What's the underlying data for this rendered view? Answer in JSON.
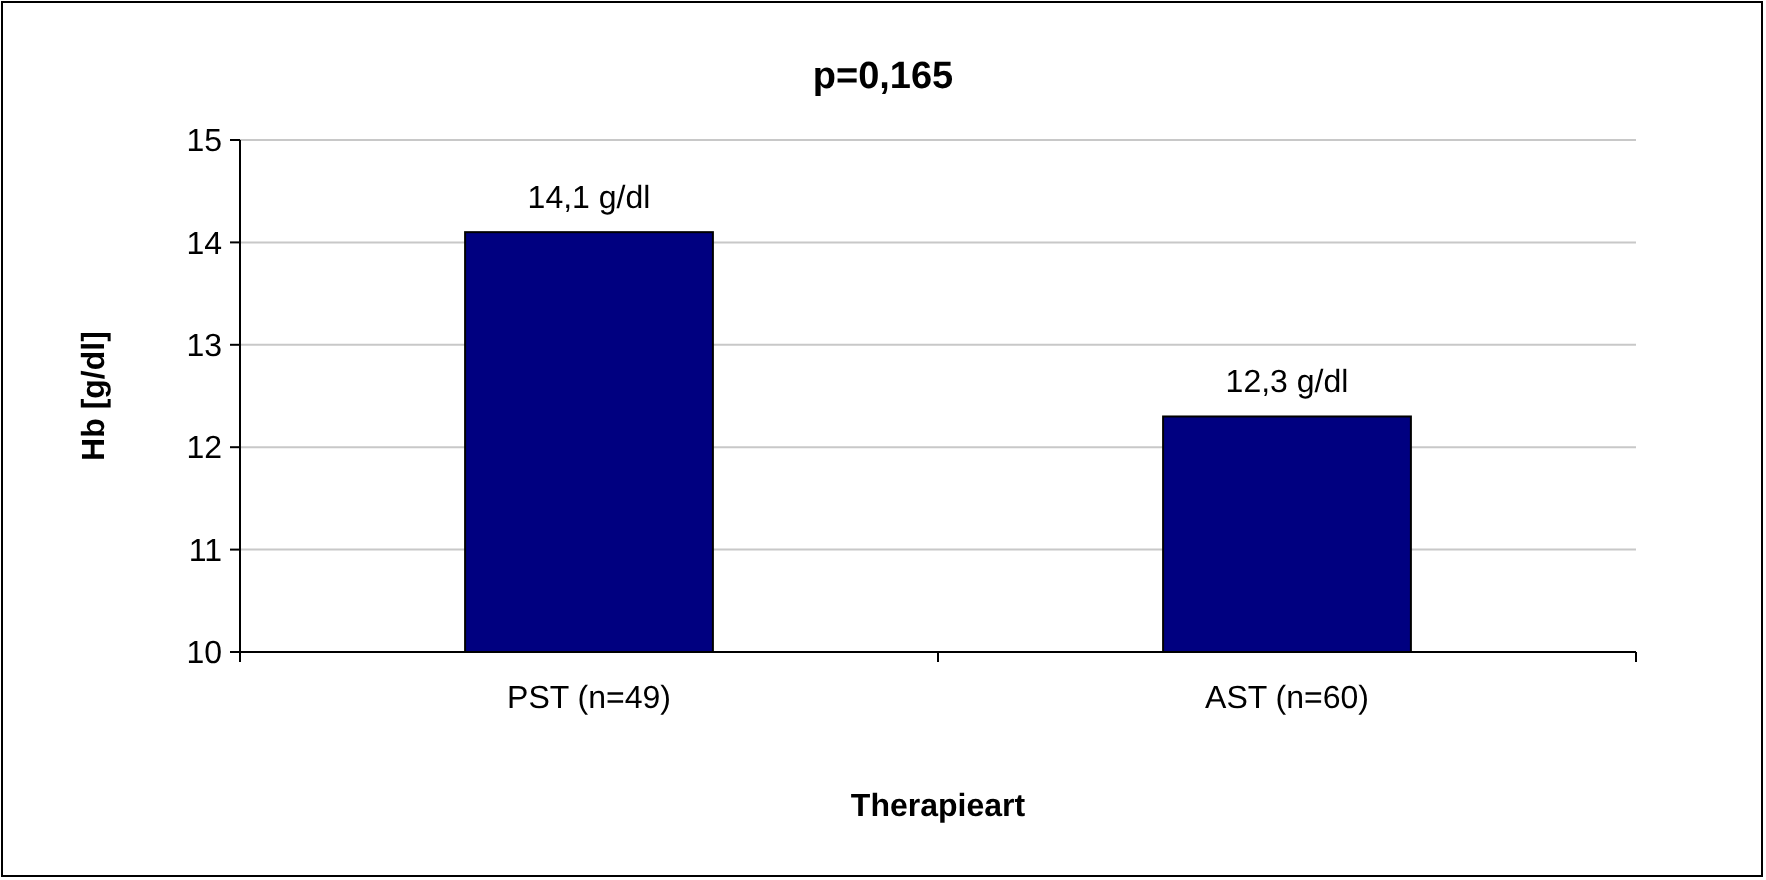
{
  "chart_data": {
    "type": "bar",
    "title": "p=0,165",
    "xlabel": "Therapieart",
    "ylabel": "Hb [g/dl]",
    "categories": [
      "PST (n=49)",
      "AST (n=60)"
    ],
    "values": [
      14.1,
      12.3
    ],
    "value_labels": [
      "14,1 g/dl",
      "12,3 g/dl"
    ],
    "color": "#000080",
    "ylim": [
      10,
      15
    ],
    "yticks": [
      10,
      11,
      12,
      13,
      14,
      15
    ],
    "grid": "y"
  }
}
